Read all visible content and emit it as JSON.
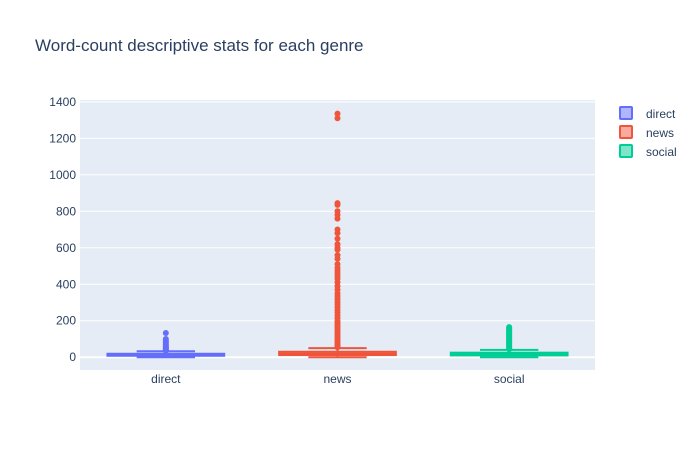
{
  "chart_data": {
    "type": "box",
    "title": "Word-count descriptive stats for each genre",
    "xlabel": "",
    "ylabel": "",
    "categories": [
      "direct",
      "news",
      "social"
    ],
    "ylim": [
      -70,
      1410
    ],
    "yticks": [
      0,
      200,
      400,
      600,
      800,
      1000,
      1200,
      1400
    ],
    "grid": true,
    "legend_position": "top-right",
    "series": [
      {
        "name": "direct",
        "color": "#636efa",
        "q1": 8,
        "median": 13,
        "q3": 19,
        "lower_fence": 0,
        "upper_fence": 33,
        "outliers": [
          36,
          40,
          45,
          50,
          55,
          60,
          65,
          70,
          78,
          85,
          92,
          100,
          133
        ]
      },
      {
        "name": "news",
        "color": "#ef553b",
        "q1": 12,
        "median": 20,
        "q3": 30,
        "lower_fence": 0,
        "upper_fence": 50,
        "outliers": [
          55,
          62,
          70,
          80,
          90,
          100,
          110,
          120,
          130,
          140,
          150,
          160,
          170,
          180,
          190,
          200,
          215,
          230,
          245,
          260,
          275,
          290,
          305,
          320,
          335,
          350,
          370,
          390,
          410,
          430,
          445,
          460,
          475,
          490,
          510,
          540,
          560,
          590,
          600,
          620,
          650,
          680,
          700,
          760,
          780,
          800,
          835,
          845,
          1310,
          1335
        ]
      },
      {
        "name": "social",
        "color": "#00cc96",
        "q1": 10,
        "median": 17,
        "q3": 25,
        "lower_fence": 0,
        "upper_fence": 40,
        "outliers": [
          45,
          50,
          55,
          60,
          65,
          70,
          75,
          80,
          85,
          90,
          95,
          100,
          105,
          110,
          115,
          120,
          125,
          130,
          135,
          140,
          145,
          150,
          155,
          160,
          165
        ]
      }
    ]
  }
}
